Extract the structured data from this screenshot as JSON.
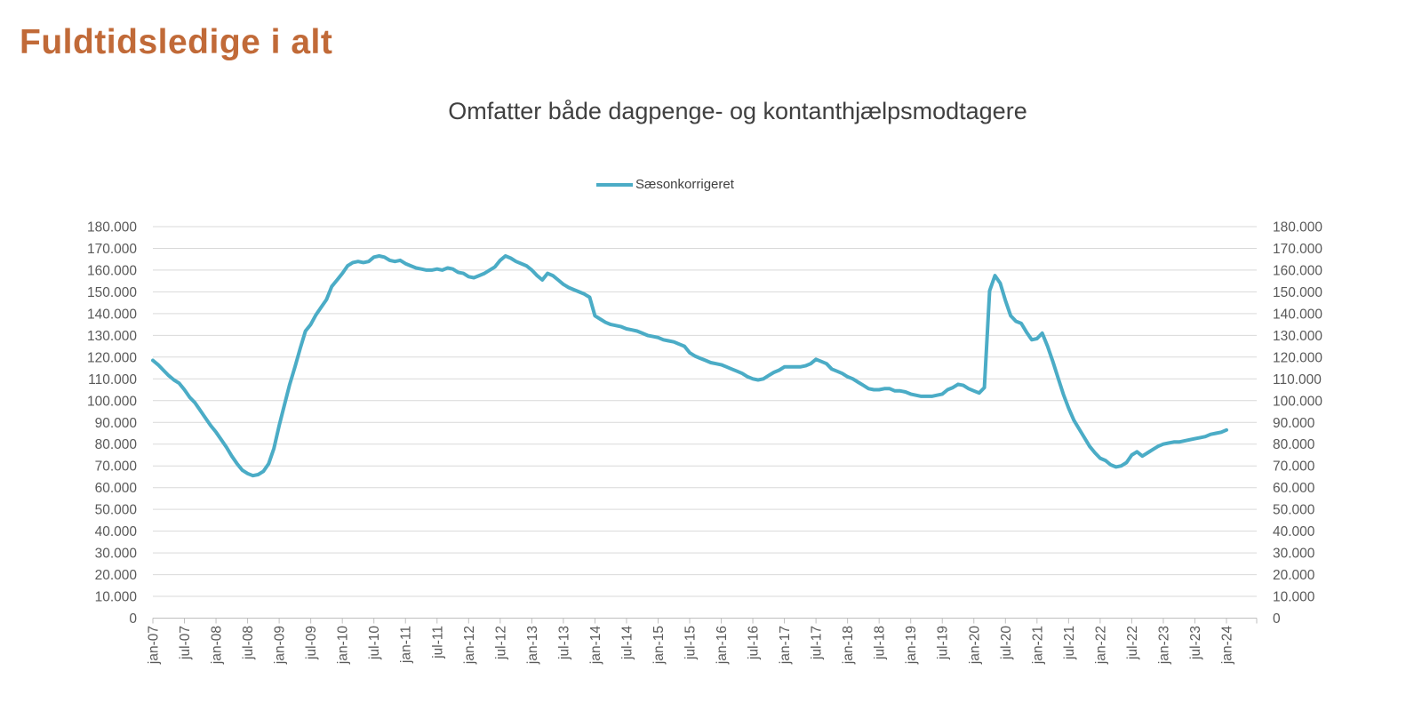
{
  "page_title": "Fuldtidsledige i alt",
  "colors": {
    "title": "#C16A38",
    "subtitle": "#404040",
    "axis_text": "#595959",
    "gridline": "#D9D9D9",
    "axis_line": "#BFBFBF",
    "series_line": "#4BACC6",
    "background": "#FFFFFF"
  },
  "chart_data": {
    "type": "line",
    "title": "Omfatter både dagpenge- og kontanthjælpsmodtagere",
    "legend_position": "top",
    "grid": true,
    "x_label_rotation": -90,
    "x_start": "jan-07",
    "x_end": "jan-24",
    "frequency": "monthly",
    "x_tick_interval_months": 6,
    "x_tick_labels": [
      "jan-07",
      "jul-07",
      "jan-08",
      "jul-08",
      "jan-09",
      "jul-09",
      "jan-10",
      "jul-10",
      "jan-11",
      "jul-11",
      "jan-12",
      "jul-12",
      "jan-13",
      "jul-13",
      "jan-14",
      "jul-14",
      "jan-15",
      "jul-15",
      "jan-16",
      "jul-16",
      "jan-17",
      "jul-17",
      "jan-18",
      "jul-18",
      "jan-19",
      "jul-19",
      "jan-20",
      "jul-20",
      "jan-21",
      "jul-21",
      "jan-22",
      "jul-22",
      "jan-23",
      "jul-23",
      "jan-24"
    ],
    "y_min": 0,
    "y_max": 180000,
    "y_step": 10000,
    "y_axis_sides": "both",
    "y_tick_labels": [
      "0",
      "10.000",
      "20.000",
      "30.000",
      "40.000",
      "50.000",
      "60.000",
      "70.000",
      "80.000",
      "90.000",
      "100.000",
      "110.000",
      "120.000",
      "130.000",
      "140.000",
      "150.000",
      "160.000",
      "170.000",
      "180.000"
    ],
    "series": [
      {
        "name": "Sæsonkorrigeret",
        "color": "#4BACC6",
        "values": [
          118500,
          116500,
          114000,
          111500,
          109500,
          108000,
          105000,
          101500,
          99000,
          95500,
          92000,
          88500,
          85500,
          82000,
          78500,
          74500,
          71000,
          68000,
          66500,
          65500,
          66000,
          67500,
          71000,
          78000,
          88500,
          98000,
          107500,
          115500,
          124000,
          132000,
          135000,
          139500,
          143000,
          146500,
          152500,
          155500,
          158500,
          162000,
          163500,
          164000,
          163500,
          164000,
          166000,
          166500,
          166000,
          164500,
          164000,
          164500,
          163000,
          162000,
          161000,
          160500,
          160000,
          160000,
          160500,
          160000,
          161000,
          160500,
          159000,
          158500,
          157000,
          156500,
          157500,
          158500,
          160000,
          161500,
          164500,
          166500,
          165500,
          164000,
          163000,
          162000,
          160000,
          157500,
          155500,
          158500,
          157500,
          155500,
          153500,
          152000,
          151000,
          150000,
          149000,
          147500,
          139000,
          137500,
          136000,
          135000,
          134500,
          134000,
          133000,
          132500,
          132000,
          131000,
          130000,
          129500,
          129000,
          128000,
          127500,
          127000,
          126000,
          125000,
          122000,
          120500,
          119500,
          118500,
          117500,
          117000,
          116500,
          115500,
          114500,
          113500,
          112500,
          111000,
          110000,
          109500,
          110000,
          111500,
          113000,
          114000,
          115500,
          115500,
          115500,
          115500,
          116000,
          117000,
          119000,
          118000,
          117000,
          114500,
          113500,
          112500,
          111000,
          110000,
          108500,
          107000,
          105500,
          105000,
          105000,
          105500,
          105500,
          104500,
          104500,
          104000,
          103000,
          102500,
          102000,
          102000,
          102000,
          102500,
          103000,
          105000,
          106000,
          107500,
          107000,
          105500,
          104500,
          103500,
          106000,
          150500,
          157500,
          154000,
          146000,
          139000,
          136500,
          135500,
          131500,
          128000,
          128500,
          131000,
          125000,
          118000,
          110500,
          103000,
          96500,
          91000,
          87000,
          83000,
          79000,
          76000,
          73500,
          72500,
          70500,
          69500,
          70000,
          71500,
          75000,
          76500,
          74500,
          76000,
          77500,
          79000,
          80000,
          80500,
          81000,
          81000,
          81500,
          82000,
          82500,
          83000,
          83500,
          84500,
          85000,
          85500,
          86500
        ]
      }
    ]
  }
}
